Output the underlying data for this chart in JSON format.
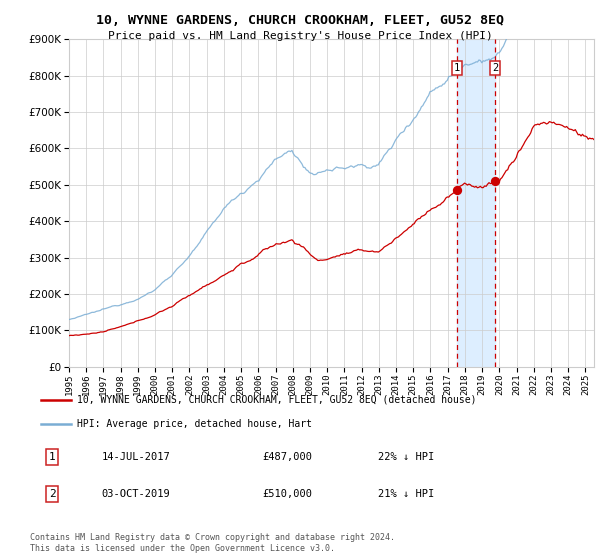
{
  "title": "10, WYNNE GARDENS, CHURCH CROOKHAM, FLEET, GU52 8EQ",
  "subtitle": "Price paid vs. HM Land Registry's House Price Index (HPI)",
  "legend_line1": "10, WYNNE GARDENS, CHURCH CROOKHAM, FLEET, GU52 8EQ (detached house)",
  "legend_line2": "HPI: Average price, detached house, Hart",
  "sale1_label": "1",
  "sale1_date": "14-JUL-2017",
  "sale1_price": "£487,000",
  "sale1_hpi": "22% ↓ HPI",
  "sale1_year": 2017.54,
  "sale1_value": 487000,
  "sale2_label": "2",
  "sale2_date": "03-OCT-2019",
  "sale2_price": "£510,000",
  "sale2_hpi": "21% ↓ HPI",
  "sale2_year": 2019.75,
  "sale2_value": 510000,
  "red_color": "#cc0000",
  "blue_color": "#7aadd4",
  "highlight_color": "#ddeeff",
  "grid_color": "#cccccc",
  "background_color": "#ffffff",
  "footnote": "Contains HM Land Registry data © Crown copyright and database right 2024.\nThis data is licensed under the Open Government Licence v3.0.",
  "ylim": [
    0,
    900000
  ],
  "xlim_start": 1995.0,
  "xlim_end": 2025.5
}
